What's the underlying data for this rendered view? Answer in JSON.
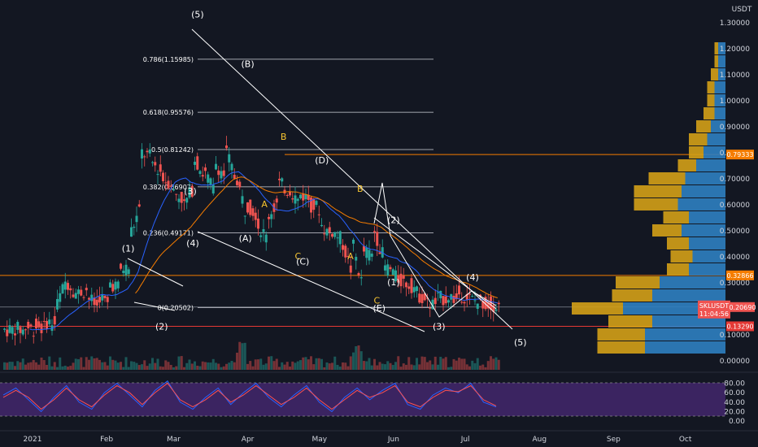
{
  "chart_data": [
    {
      "type": "candlestick",
      "symbol": "SKLUSDT",
      "currency_label": "USDT",
      "countdown": "11:04:56",
      "last_price": 0.2069,
      "ylim": [
        0,
        1.32
      ],
      "y_ticks": [
        "0.00000",
        "0.10000",
        "0.20000",
        "0.30000",
        "0.40000",
        "0.50000",
        "0.60000",
        "0.70000",
        "0.80000",
        "0.90000",
        "1.00000",
        "1.10000",
        "1.20000",
        "1.30000"
      ],
      "x_ticks": [
        "2021",
        "Feb",
        "Mar",
        "Apr",
        "May",
        "Jun",
        "Jul",
        "Aug",
        "Sep",
        "Oct"
      ],
      "price_path": [
        [
          0.12,
          0.12
        ],
        [
          0.125,
          0.115
        ],
        [
          0.13,
          0.118
        ],
        [
          0.135,
          0.122
        ],
        [
          0.15,
          0.14
        ],
        [
          0.22,
          0.33
        ],
        [
          0.3,
          0.25
        ],
        [
          0.26,
          0.28
        ],
        [
          0.24,
          0.2
        ],
        [
          0.25,
          0.205
        ],
        [
          0.3,
          0.28
        ],
        [
          0.35,
          0.36
        ],
        [
          0.5,
          0.6
        ],
        [
          0.8,
          0.78
        ],
        [
          0.76,
          0.72
        ],
        [
          0.7,
          0.68
        ],
        [
          0.65,
          0.62
        ],
        [
          0.6,
          0.68
        ],
        [
          0.78,
          0.7
        ],
        [
          0.72,
          0.64
        ],
        [
          0.76,
          0.7
        ],
        [
          0.8,
          0.68
        ],
        [
          0.7,
          0.54
        ],
        [
          0.6,
          0.56
        ],
        [
          0.52,
          0.46
        ],
        [
          0.56,
          0.62
        ],
        [
          0.68,
          0.65
        ],
        [
          0.66,
          0.6
        ],
        [
          0.64,
          0.62
        ],
        [
          0.6,
          0.58
        ],
        [
          0.52,
          0.48
        ],
        [
          0.5,
          0.46
        ],
        [
          0.45,
          0.32
        ],
        [
          0.44,
          0.26
        ],
        [
          0.42,
          0.4
        ],
        [
          0.5,
          0.38
        ],
        [
          0.36,
          0.34
        ],
        [
          0.32,
          0.3
        ],
        [
          0.3,
          0.28
        ],
        [
          0.26,
          0.23
        ],
        [
          0.22,
          0.22
        ],
        [
          0.24,
          0.24
        ],
        [
          0.25,
          0.23
        ],
        [
          0.26,
          0.24
        ],
        [
          0.24,
          0.22
        ],
        [
          0.23,
          0.21
        ],
        [
          0.22,
          0.207
        ]
      ],
      "fib_levels": [
        {
          "label": "0.786(1.15985)",
          "value": 1.15985
        },
        {
          "label": "0.618(0.95576)",
          "value": 0.95576
        },
        {
          "label": "0.5(0.81242)",
          "value": 0.81242
        },
        {
          "label": "0.382(0.66907)",
          "value": 0.66907
        },
        {
          "label": "0.236(0.49171)",
          "value": 0.49171
        },
        {
          "label": "0(0.20502)",
          "value": 0.20502
        }
      ],
      "horizontal_levels": [
        {
          "value": 0.79333,
          "label": "0.79333",
          "color": "#f57c00"
        },
        {
          "value": 0.32866,
          "label": "0.32866",
          "color": "#f57c00"
        },
        {
          "value": 0.1329,
          "label": "0.13290",
          "color": "#e53935"
        }
      ],
      "wave_labels": [
        {
          "text": "(1)",
          "date": "2021-02-10",
          "price": 0.42,
          "color": "white"
        },
        {
          "text": "(2)",
          "date": "2021-02-24",
          "price": 0.12,
          "color": "white"
        },
        {
          "text": "(3)",
          "date": "2021-03-08",
          "price": 0.64,
          "color": "white"
        },
        {
          "text": "(4)",
          "date": "2021-03-09",
          "price": 0.44,
          "color": "white"
        },
        {
          "text": "(5)",
          "date": "2021-03-11",
          "price": 1.32,
          "color": "white"
        },
        {
          "text": "(A)",
          "date": "2021-03-31",
          "price": 0.46,
          "color": "white"
        },
        {
          "text": "(B)",
          "date": "2021-04-01",
          "price": 1.13,
          "color": "white"
        },
        {
          "text": "A",
          "date": "2021-04-08",
          "price": 0.59,
          "color": "yellow"
        },
        {
          "text": "B",
          "date": "2021-04-16",
          "price": 0.85,
          "color": "yellow"
        },
        {
          "text": "C",
          "date": "2021-04-22",
          "price": 0.39,
          "color": "yellow"
        },
        {
          "text": "(C)",
          "date": "2021-04-24",
          "price": 0.37,
          "color": "white"
        },
        {
          "text": "(D)",
          "date": "2021-05-02",
          "price": 0.76,
          "color": "white"
        },
        {
          "text": "B",
          "date": "2021-05-18",
          "price": 0.65,
          "color": "yellow"
        },
        {
          "text": "A",
          "date": "2021-05-14",
          "price": 0.39,
          "color": "yellow"
        },
        {
          "text": "C",
          "date": "2021-05-25",
          "price": 0.22,
          "color": "yellow"
        },
        {
          "text": "(E)",
          "date": "2021-05-26",
          "price": 0.19,
          "color": "white"
        },
        {
          "text": "(2)",
          "date": "2021-06-01",
          "price": 0.53,
          "color": "white"
        },
        {
          "text": "(1)",
          "date": "2021-06-01",
          "price": 0.29,
          "color": "white"
        },
        {
          "text": "(3)",
          "date": "2021-06-20",
          "price": 0.12,
          "color": "white"
        },
        {
          "text": "(4)",
          "date": "2021-07-04",
          "price": 0.31,
          "color": "white"
        },
        {
          "text": "(5)",
          "date": "2021-07-24",
          "price": 0.06,
          "color": "white"
        }
      ],
      "volume_profile": [
        {
          "price": 1.2,
          "up": 0.02,
          "down": 0.01
        },
        {
          "price": 1.15,
          "up": 0.02,
          "down": 0.01
        },
        {
          "price": 1.1,
          "up": 0.02,
          "down": 0.02
        },
        {
          "price": 1.05,
          "up": 0.03,
          "down": 0.02
        },
        {
          "price": 1.0,
          "up": 0.03,
          "down": 0.02
        },
        {
          "price": 0.95,
          "up": 0.03,
          "down": 0.03
        },
        {
          "price": 0.9,
          "up": 0.04,
          "down": 0.04
        },
        {
          "price": 0.85,
          "up": 0.05,
          "down": 0.05
        },
        {
          "price": 0.8,
          "up": 0.06,
          "down": 0.04
        },
        {
          "price": 0.75,
          "up": 0.08,
          "down": 0.05
        },
        {
          "price": 0.7,
          "up": 0.11,
          "down": 0.1
        },
        {
          "price": 0.65,
          "up": 0.12,
          "down": 0.13
        },
        {
          "price": 0.6,
          "up": 0.13,
          "down": 0.12
        },
        {
          "price": 0.55,
          "up": 0.1,
          "down": 0.07
        },
        {
          "price": 0.5,
          "up": 0.12,
          "down": 0.08
        },
        {
          "price": 0.45,
          "up": 0.1,
          "down": 0.06
        },
        {
          "price": 0.4,
          "up": 0.09,
          "down": 0.06
        },
        {
          "price": 0.35,
          "up": 0.1,
          "down": 0.06
        },
        {
          "price": 0.3,
          "up": 0.18,
          "down": 0.12
        },
        {
          "price": 0.25,
          "up": 0.2,
          "down": 0.11
        },
        {
          "price": 0.2,
          "up": 0.28,
          "down": 0.14
        },
        {
          "price": 0.15,
          "up": 0.2,
          "down": 0.12
        },
        {
          "price": 0.1,
          "up": 0.22,
          "down": 0.13
        },
        {
          "price": 0.05,
          "up": 0.22,
          "down": 0.13
        }
      ],
      "colors": {
        "up": "#26a69a",
        "down": "#ef5350",
        "ma_fast": "#2962ff",
        "ma_slow": "#f57c00",
        "profile_up": "#2f7fc1",
        "profile_down": "#d4a017"
      }
    },
    {
      "type": "line",
      "indicator": "stochastic",
      "ylim": [
        0,
        100
      ],
      "y_ticks": [
        "0.00",
        "20.00",
        "40.00",
        "60.00",
        "80.00"
      ],
      "band": [
        20,
        80
      ],
      "series": [
        {
          "color": "#2962ff",
          "values": [
            55,
            70,
            45,
            20,
            50,
            75,
            40,
            25,
            60,
            80,
            55,
            30,
            65,
            85,
            40,
            25,
            50,
            70,
            35,
            60,
            80,
            50,
            30,
            55,
            75,
            40,
            20,
            50,
            70,
            45,
            65,
            80,
            35,
            25,
            55,
            70,
            60,
            80,
            40,
            30
          ]
        },
        {
          "color": "#ff5252",
          "values": [
            50,
            65,
            50,
            25,
            45,
            70,
            45,
            30,
            55,
            75,
            60,
            35,
            60,
            80,
            45,
            30,
            45,
            65,
            40,
            55,
            75,
            55,
            35,
            50,
            70,
            45,
            25,
            45,
            65,
            50,
            60,
            75,
            40,
            30,
            50,
            65,
            62,
            75,
            45,
            32
          ]
        }
      ]
    }
  ]
}
